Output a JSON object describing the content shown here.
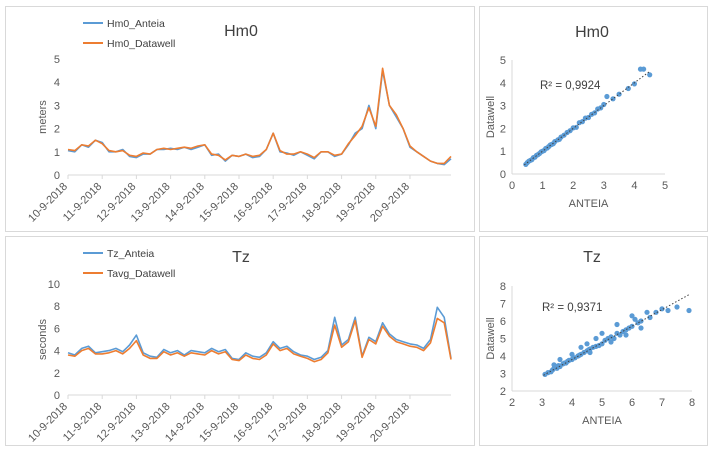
{
  "chart_data": [
    {
      "id": "hm0_ts",
      "type": "line",
      "title": "Hm0",
      "ylabel": "meters",
      "xlabel": "",
      "ylim": [
        0,
        5
      ],
      "yticks": [
        0,
        1,
        2,
        3,
        4,
        5
      ],
      "grid": false,
      "legend_position": "top-left",
      "x_dates": [
        "10-9-2018",
        "11-9-2018",
        "12-9-2018",
        "13-9-2018",
        "14-9-2018",
        "15-9-2018",
        "16-9-2018",
        "17-9-2018",
        "18-9-2018",
        "19-9-2018",
        "20-9-2018"
      ],
      "x": [
        10.0,
        10.2,
        10.4,
        10.6,
        10.8,
        11.0,
        11.2,
        11.4,
        11.6,
        11.8,
        12.0,
        12.2,
        12.4,
        12.6,
        12.8,
        13.0,
        13.2,
        13.4,
        13.6,
        13.8,
        14.0,
        14.2,
        14.4,
        14.6,
        14.8,
        15.0,
        15.2,
        15.4,
        15.6,
        15.8,
        16.0,
        16.2,
        16.4,
        16.6,
        16.8,
        17.0,
        17.2,
        17.4,
        17.6,
        17.8,
        18.0,
        18.2,
        18.4,
        18.6,
        18.8,
        19.0,
        19.2,
        19.4,
        19.6,
        19.8,
        20.0,
        20.2,
        20.4,
        20.6,
        20.8,
        21.0,
        21.2
      ],
      "series": [
        {
          "name": "Hm0_Anteia",
          "color": "#5b9bd5",
          "values": [
            1.05,
            1.0,
            1.3,
            1.2,
            1.5,
            1.4,
            1.0,
            1.0,
            1.1,
            0.8,
            0.75,
            0.9,
            0.9,
            1.1,
            1.1,
            1.15,
            1.1,
            1.2,
            1.1,
            1.2,
            1.3,
            0.85,
            0.9,
            0.6,
            0.85,
            0.8,
            0.9,
            0.75,
            0.8,
            1.1,
            1.8,
            1.0,
            0.95,
            0.85,
            1.0,
            0.85,
            0.7,
            1.0,
            1.0,
            0.8,
            0.9,
            1.3,
            1.8,
            2.0,
            3.0,
            2.0,
            4.5,
            3.0,
            2.5,
            2.0,
            1.2,
            1.0,
            0.8,
            0.6,
            0.5,
            0.45,
            0.7
          ]
        },
        {
          "name": "Hm0_Datawell",
          "color": "#ed7d31",
          "values": [
            1.1,
            1.05,
            1.3,
            1.25,
            1.5,
            1.35,
            1.05,
            1.0,
            1.05,
            0.85,
            0.8,
            0.95,
            0.9,
            1.1,
            1.15,
            1.1,
            1.15,
            1.2,
            1.15,
            1.25,
            1.3,
            0.9,
            0.85,
            0.65,
            0.85,
            0.8,
            0.9,
            0.8,
            0.85,
            1.1,
            1.8,
            1.05,
            0.9,
            0.9,
            1.0,
            0.9,
            0.75,
            1.0,
            1.0,
            0.85,
            0.9,
            1.35,
            1.7,
            2.1,
            2.9,
            2.1,
            4.6,
            3.0,
            2.6,
            2.0,
            1.25,
            1.0,
            0.8,
            0.6,
            0.5,
            0.5,
            0.8
          ]
        }
      ]
    },
    {
      "id": "hm0_scatter",
      "type": "scatter",
      "title": "Hm0",
      "xlabel": "ANTEIA",
      "ylabel": "Datawell",
      "xlim": [
        0,
        5
      ],
      "ylim": [
        0,
        5
      ],
      "xticks": [
        0,
        1,
        2,
        3,
        4,
        5
      ],
      "yticks": [
        0,
        1,
        2,
        3,
        4,
        5
      ],
      "annotation": "R² = 0,9924",
      "trendline": {
        "slope": 1.0,
        "intercept": 0.0,
        "from": 0.4,
        "to": 4.5
      },
      "point_color": "#5b9bd5",
      "points": [
        [
          0.45,
          0.42
        ],
        [
          0.5,
          0.5
        ],
        [
          0.55,
          0.56
        ],
        [
          0.6,
          0.6
        ],
        [
          0.65,
          0.63
        ],
        [
          0.7,
          0.72
        ],
        [
          0.75,
          0.74
        ],
        [
          0.8,
          0.82
        ],
        [
          0.85,
          0.85
        ],
        [
          0.9,
          0.9
        ],
        [
          0.95,
          0.97
        ],
        [
          1.0,
          1.0
        ],
        [
          1.05,
          1.03
        ],
        [
          1.1,
          1.12
        ],
        [
          1.15,
          1.14
        ],
        [
          1.2,
          1.2
        ],
        [
          1.25,
          1.27
        ],
        [
          1.3,
          1.3
        ],
        [
          1.35,
          1.33
        ],
        [
          1.4,
          1.42
        ],
        [
          1.5,
          1.5
        ],
        [
          1.55,
          1.52
        ],
        [
          1.6,
          1.62
        ],
        [
          1.7,
          1.7
        ],
        [
          1.8,
          1.82
        ],
        [
          1.9,
          1.9
        ],
        [
          2.0,
          2.02
        ],
        [
          2.1,
          2.05
        ],
        [
          2.2,
          2.25
        ],
        [
          2.3,
          2.3
        ],
        [
          2.4,
          2.45
        ],
        [
          2.5,
          2.48
        ],
        [
          2.6,
          2.62
        ],
        [
          2.7,
          2.68
        ],
        [
          2.8,
          2.85
        ],
        [
          2.9,
          2.9
        ],
        [
          3.0,
          3.05
        ],
        [
          3.1,
          3.4
        ],
        [
          3.3,
          3.3
        ],
        [
          3.5,
          3.5
        ],
        [
          3.8,
          3.75
        ],
        [
          4.0,
          3.95
        ],
        [
          4.2,
          4.6
        ],
        [
          4.3,
          4.6
        ],
        [
          4.5,
          4.35
        ]
      ]
    },
    {
      "id": "tz_ts",
      "type": "line",
      "title": "Tz",
      "ylabel": "seconds",
      "xlabel": "",
      "ylim": [
        0,
        10
      ],
      "yticks": [
        0,
        2,
        4,
        6,
        8,
        10
      ],
      "grid": false,
      "legend_position": "top-left",
      "x_dates": [
        "10-9-2018",
        "11-9-2018",
        "12-9-2018",
        "13-9-2018",
        "14-9-2018",
        "15-9-2018",
        "16-9-2018",
        "17-9-2018",
        "18-9-2018",
        "19-9-2018",
        "20-9-2018"
      ],
      "x": [
        10.0,
        10.2,
        10.4,
        10.6,
        10.8,
        11.0,
        11.2,
        11.4,
        11.6,
        11.8,
        12.0,
        12.2,
        12.4,
        12.6,
        12.8,
        13.0,
        13.2,
        13.4,
        13.6,
        13.8,
        14.0,
        14.2,
        14.4,
        14.6,
        14.8,
        15.0,
        15.2,
        15.4,
        15.6,
        15.8,
        16.0,
        16.2,
        16.4,
        16.6,
        16.8,
        17.0,
        17.2,
        17.4,
        17.6,
        17.8,
        18.0,
        18.2,
        18.4,
        18.6,
        18.8,
        19.0,
        19.2,
        19.4,
        19.6,
        19.8,
        20.0,
        20.2,
        20.4,
        20.6,
        20.8,
        21.0,
        21.2
      ],
      "series": [
        {
          "name": "Tz_Anteia",
          "color": "#5b9bd5",
          "values": [
            3.8,
            3.6,
            4.2,
            4.4,
            3.8,
            3.9,
            4.0,
            4.2,
            3.9,
            4.5,
            5.4,
            3.8,
            3.5,
            3.4,
            4.1,
            3.8,
            4.0,
            3.6,
            4.0,
            3.9,
            3.8,
            4.2,
            3.9,
            4.1,
            3.3,
            3.2,
            3.8,
            3.5,
            3.4,
            3.8,
            4.8,
            4.2,
            4.4,
            3.9,
            3.6,
            3.5,
            3.2,
            3.4,
            4.0,
            7.0,
            4.5,
            5.0,
            7.0,
            3.5,
            5.2,
            4.8,
            6.5,
            5.5,
            5.0,
            4.8,
            4.6,
            4.5,
            4.2,
            5.0,
            7.9,
            7.0,
            3.3
          ]
        },
        {
          "name": "Tavg_Datawell",
          "color": "#ed7d31",
          "values": [
            3.6,
            3.5,
            4.0,
            4.2,
            3.7,
            3.7,
            3.8,
            4.0,
            3.7,
            4.2,
            4.9,
            3.6,
            3.3,
            3.3,
            3.9,
            3.6,
            3.8,
            3.5,
            3.8,
            3.7,
            3.6,
            4.0,
            3.7,
            3.9,
            3.2,
            3.1,
            3.6,
            3.3,
            3.2,
            3.6,
            4.6,
            4.0,
            4.2,
            3.7,
            3.5,
            3.3,
            3.0,
            3.2,
            3.8,
            6.3,
            4.3,
            4.8,
            6.7,
            3.4,
            5.0,
            4.6,
            6.2,
            5.3,
            4.8,
            4.6,
            4.4,
            4.3,
            4.0,
            4.7,
            6.9,
            6.5,
            3.2
          ]
        }
      ]
    },
    {
      "id": "tz_scatter",
      "type": "scatter",
      "title": "Tz",
      "xlabel": "ANTEIA",
      "ylabel": "Datawell",
      "xlim": [
        2,
        8
      ],
      "ylim": [
        2,
        8
      ],
      "xticks": [
        2,
        3,
        4,
        5,
        6,
        7,
        8
      ],
      "yticks": [
        2,
        3,
        4,
        5,
        6,
        7,
        8
      ],
      "annotation": "R² = 0,9371",
      "trendline": {
        "slope": 0.95,
        "intercept": 0.0,
        "from": 3.05,
        "to": 7.9
      },
      "point_color": "#5b9bd5",
      "points": [
        [
          3.1,
          2.95
        ],
        [
          3.2,
          3.05
        ],
        [
          3.3,
          3.1
        ],
        [
          3.35,
          3.2
        ],
        [
          3.4,
          3.3
        ],
        [
          3.5,
          3.3
        ],
        [
          3.55,
          3.45
        ],
        [
          3.6,
          3.4
        ],
        [
          3.7,
          3.55
        ],
        [
          3.75,
          3.6
        ],
        [
          3.8,
          3.6
        ],
        [
          3.85,
          3.7
        ],
        [
          3.9,
          3.75
        ],
        [
          4.0,
          3.8
        ],
        [
          4.05,
          3.9
        ],
        [
          4.1,
          3.9
        ],
        [
          4.2,
          4.0
        ],
        [
          4.25,
          4.05
        ],
        [
          4.3,
          4.1
        ],
        [
          4.4,
          4.2
        ],
        [
          4.5,
          4.3
        ],
        [
          4.55,
          4.35
        ],
        [
          4.6,
          4.4
        ],
        [
          4.7,
          4.5
        ],
        [
          4.8,
          4.55
        ],
        [
          4.9,
          4.6
        ],
        [
          5.0,
          4.7
        ],
        [
          5.1,
          4.9
        ],
        [
          5.2,
          5.0
        ],
        [
          5.3,
          5.1
        ],
        [
          5.4,
          5.0
        ],
        [
          5.5,
          5.3
        ],
        [
          5.6,
          5.2
        ],
        [
          5.7,
          5.4
        ],
        [
          5.8,
          5.5
        ],
        [
          5.9,
          5.6
        ],
        [
          6.0,
          5.7
        ],
        [
          6.1,
          6.1
        ],
        [
          6.2,
          5.9
        ],
        [
          6.3,
          6.0
        ],
        [
          6.5,
          6.5
        ],
        [
          6.6,
          6.2
        ],
        [
          6.8,
          6.5
        ],
        [
          7.0,
          6.7
        ],
        [
          7.2,
          6.6
        ],
        [
          7.5,
          6.8
        ],
        [
          7.9,
          6.6
        ],
        [
          4.0,
          4.1
        ],
        [
          4.5,
          4.7
        ],
        [
          5.0,
          5.3
        ],
        [
          5.5,
          5.8
        ],
        [
          6.0,
          6.3
        ],
        [
          3.6,
          3.8
        ],
        [
          4.3,
          4.5
        ],
        [
          4.8,
          5.0
        ],
        [
          5.3,
          4.8
        ],
        [
          5.8,
          5.2
        ],
        [
          6.3,
          5.6
        ],
        [
          3.4,
          3.5
        ],
        [
          4.6,
          4.2
        ]
      ]
    }
  ]
}
